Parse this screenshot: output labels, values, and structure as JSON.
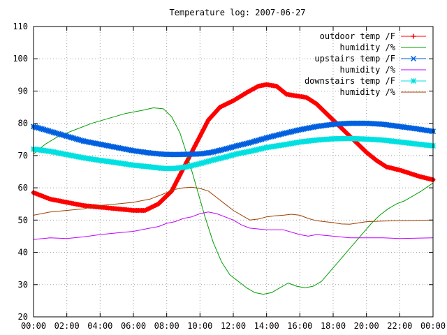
{
  "chart_data": {
    "type": "line",
    "title": "Temperature log: 2007-06-27",
    "xlabel": "",
    "ylabel": "",
    "xlim": [
      0,
      24
    ],
    "ylim": [
      20,
      110
    ],
    "grid": true,
    "legend_position": "top-right",
    "x_ticks": [
      {
        "value": 0,
        "label": "00:00"
      },
      {
        "value": 2,
        "label": "02:00"
      },
      {
        "value": 4,
        "label": "04:00"
      },
      {
        "value": 6,
        "label": "06:00"
      },
      {
        "value": 8,
        "label": "08:00"
      },
      {
        "value": 10,
        "label": "10:00"
      },
      {
        "value": 12,
        "label": "12:00"
      },
      {
        "value": 14,
        "label": "14:00"
      },
      {
        "value": 16,
        "label": "16:00"
      },
      {
        "value": 18,
        "label": "18:00"
      },
      {
        "value": 20,
        "label": "20:00"
      },
      {
        "value": 22,
        "label": "22:00"
      },
      {
        "value": 24,
        "label": "00:00"
      }
    ],
    "y_ticks": [
      {
        "value": 20,
        "label": "20"
      },
      {
        "value": 30,
        "label": "30"
      },
      {
        "value": 40,
        "label": "40"
      },
      {
        "value": 50,
        "label": "50"
      },
      {
        "value": 60,
        "label": "60"
      },
      {
        "value": 70,
        "label": "70"
      },
      {
        "value": 80,
        "label": "80"
      },
      {
        "value": 90,
        "label": "90"
      },
      {
        "value": 100,
        "label": "100"
      },
      {
        "value": 110,
        "label": "110"
      }
    ],
    "series": [
      {
        "name": "outdoor temp /F",
        "color": "#ff0000",
        "marker": "plus",
        "x": [
          0,
          1,
          2,
          3,
          4,
          5,
          6,
          6.7,
          7.5,
          8.3,
          9,
          9.8,
          10.5,
          11.2,
          12,
          12.8,
          13.5,
          14,
          14.6,
          15.2,
          15.8,
          16.4,
          17,
          17.6,
          18.2,
          18.8,
          19.4,
          20,
          20.6,
          21.2,
          22,
          22.6,
          23.2,
          24
        ],
        "y": [
          58.5,
          56.5,
          55.5,
          54.5,
          54,
          53.5,
          53,
          53,
          55,
          59,
          66,
          74,
          81,
          85,
          87,
          89.5,
          91.5,
          92,
          91.5,
          89,
          88.5,
          88,
          86,
          83,
          80,
          77,
          74,
          71,
          68.5,
          66.5,
          65.5,
          64.5,
          63.5,
          62.5
        ]
      },
      {
        "name": "humidity /%",
        "color": "#00a000",
        "marker": "none",
        "x": [
          0,
          0.7,
          1.5,
          2.5,
          3.5,
          4.5,
          5.5,
          6.5,
          7.2,
          7.8,
          8.3,
          8.8,
          9.3,
          9.8,
          10.3,
          10.8,
          11.3,
          11.8,
          12.3,
          12.8,
          13.3,
          13.8,
          14.3,
          14.8,
          15.3,
          15.8,
          16.3,
          16.8,
          17.3,
          17.8,
          18.3,
          18.8,
          19.3,
          19.8,
          20.3,
          20.8,
          21.3,
          21.8,
          22.3,
          22.8,
          23.3,
          24
        ],
        "y": [
          70.5,
          73.5,
          76,
          78,
          80,
          81.5,
          83,
          84,
          84.8,
          84.5,
          82,
          77,
          69,
          60,
          51,
          43,
          37,
          33,
          31,
          29,
          27.5,
          27,
          27.5,
          29,
          30.5,
          29.5,
          29,
          29.5,
          31,
          34,
          37,
          40,
          43,
          46,
          49,
          51.5,
          53.5,
          55,
          56,
          57.5,
          59,
          61.5
        ]
      },
      {
        "name": "upstairs temp /F",
        "color": "#0060e0",
        "marker": "cross",
        "x": [
          0,
          1,
          2,
          3,
          4,
          5,
          6,
          7,
          7.8,
          8.5,
          9.2,
          10,
          10.7,
          11.5,
          12.2,
          13,
          14,
          15,
          16,
          17,
          18,
          19,
          20,
          21,
          22,
          23,
          24
        ],
        "y": [
          79,
          77.5,
          76,
          74.5,
          73.5,
          72.5,
          71.5,
          70.8,
          70.4,
          70.3,
          70.4,
          70.5,
          71,
          72,
          73,
          74,
          75.5,
          76.8,
          78,
          79,
          79.7,
          80,
          80,
          79.7,
          79,
          78.3,
          77.5
        ]
      },
      {
        "name": "humidity /%",
        "color": "#c000ff",
        "marker": "none",
        "x": [
          0,
          1,
          2,
          3,
          4,
          5,
          6,
          7,
          7.5,
          8,
          8.5,
          9,
          9.5,
          10,
          10.5,
          11,
          11.5,
          12,
          12.5,
          13,
          14,
          15,
          16,
          16.5,
          17,
          18,
          19,
          20,
          21,
          22,
          23,
          24
        ],
        "y": [
          44,
          44.5,
          44.3,
          44.8,
          45.5,
          46,
          46.5,
          47.5,
          48,
          49,
          49.5,
          50.5,
          51,
          52,
          52.5,
          52,
          51,
          50,
          48.5,
          47.5,
          47,
          47,
          45.5,
          45,
          45.5,
          45,
          44.5,
          44.5,
          44.5,
          44.3,
          44.4,
          44.5
        ]
      },
      {
        "name": "downstairs temp /F",
        "color": "#00e0e0",
        "marker": "star",
        "x": [
          0,
          1,
          2,
          3,
          4,
          5,
          6,
          7,
          7.8,
          8.5,
          9.2,
          10,
          10.7,
          11.5,
          12.2,
          13,
          14,
          15,
          16,
          17,
          18,
          19,
          20,
          21,
          22,
          23,
          24
        ],
        "y": [
          72,
          71.3,
          70.3,
          69.3,
          68.5,
          67.8,
          67,
          66.5,
          66,
          66,
          66.5,
          67.5,
          68.5,
          69.5,
          70.5,
          71.3,
          72.5,
          73.3,
          74.2,
          74.8,
          75.2,
          75.3,
          75.1,
          74.8,
          74.2,
          73.6,
          73
        ]
      },
      {
        "name": "humidity /%",
        "color": "#a04000",
        "marker": "none",
        "x": [
          0,
          1,
          2,
          3,
          4,
          5,
          6,
          7,
          7.5,
          8,
          8.5,
          9,
          9.5,
          10,
          10.5,
          11,
          11.5,
          12,
          12.5,
          13,
          13.5,
          14,
          14.5,
          15,
          15.5,
          16,
          16.5,
          17,
          17.5,
          18,
          18.5,
          19,
          20,
          21,
          22,
          23,
          24
        ],
        "y": [
          51.5,
          52.5,
          53,
          53.5,
          54.5,
          55,
          55.5,
          56.5,
          57.5,
          58.5,
          59.5,
          60,
          60.2,
          59.8,
          59,
          57,
          55,
          53,
          51.5,
          50,
          50.3,
          51,
          51.3,
          51.5,
          51.8,
          51.5,
          50.5,
          49.8,
          49.5,
          49.2,
          48.8,
          48.7,
          49.5,
          49.7,
          49.8,
          49.9,
          50
        ]
      }
    ]
  }
}
